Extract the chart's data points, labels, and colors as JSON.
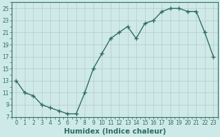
{
  "x": [
    0,
    1,
    2,
    3,
    4,
    5,
    6,
    7,
    8,
    9,
    10,
    11,
    12,
    13,
    14,
    15,
    16,
    17,
    18,
    19,
    20,
    21,
    22,
    23
  ],
  "y": [
    13,
    11,
    10.5,
    9,
    8.5,
    8,
    7.5,
    7.5,
    11,
    15,
    17.5,
    20,
    21,
    22,
    20,
    22.5,
    23,
    24.5,
    25,
    25,
    24.5,
    24.5,
    21,
    17
  ],
  "line_color": "#2d6b5e",
  "marker": "+",
  "marker_size": 4,
  "marker_lw": 1.0,
  "line_width": 1.0,
  "bg_color": "#ceeae8",
  "grid_major_color": "#b8c8c4",
  "grid_minor_color": "#d8e8e6",
  "xlabel": "Humidex (Indice chaleur)",
  "xlim": [
    -0.5,
    23.5
  ],
  "ylim": [
    7,
    26
  ],
  "yticks": [
    7,
    9,
    11,
    13,
    15,
    17,
    19,
    21,
    23,
    25
  ],
  "xticks": [
    0,
    1,
    2,
    3,
    4,
    5,
    6,
    7,
    8,
    9,
    10,
    11,
    12,
    13,
    14,
    15,
    16,
    17,
    18,
    19,
    20,
    21,
    22,
    23
  ],
  "tick_fontsize": 5.5,
  "label_fontsize": 7.5
}
